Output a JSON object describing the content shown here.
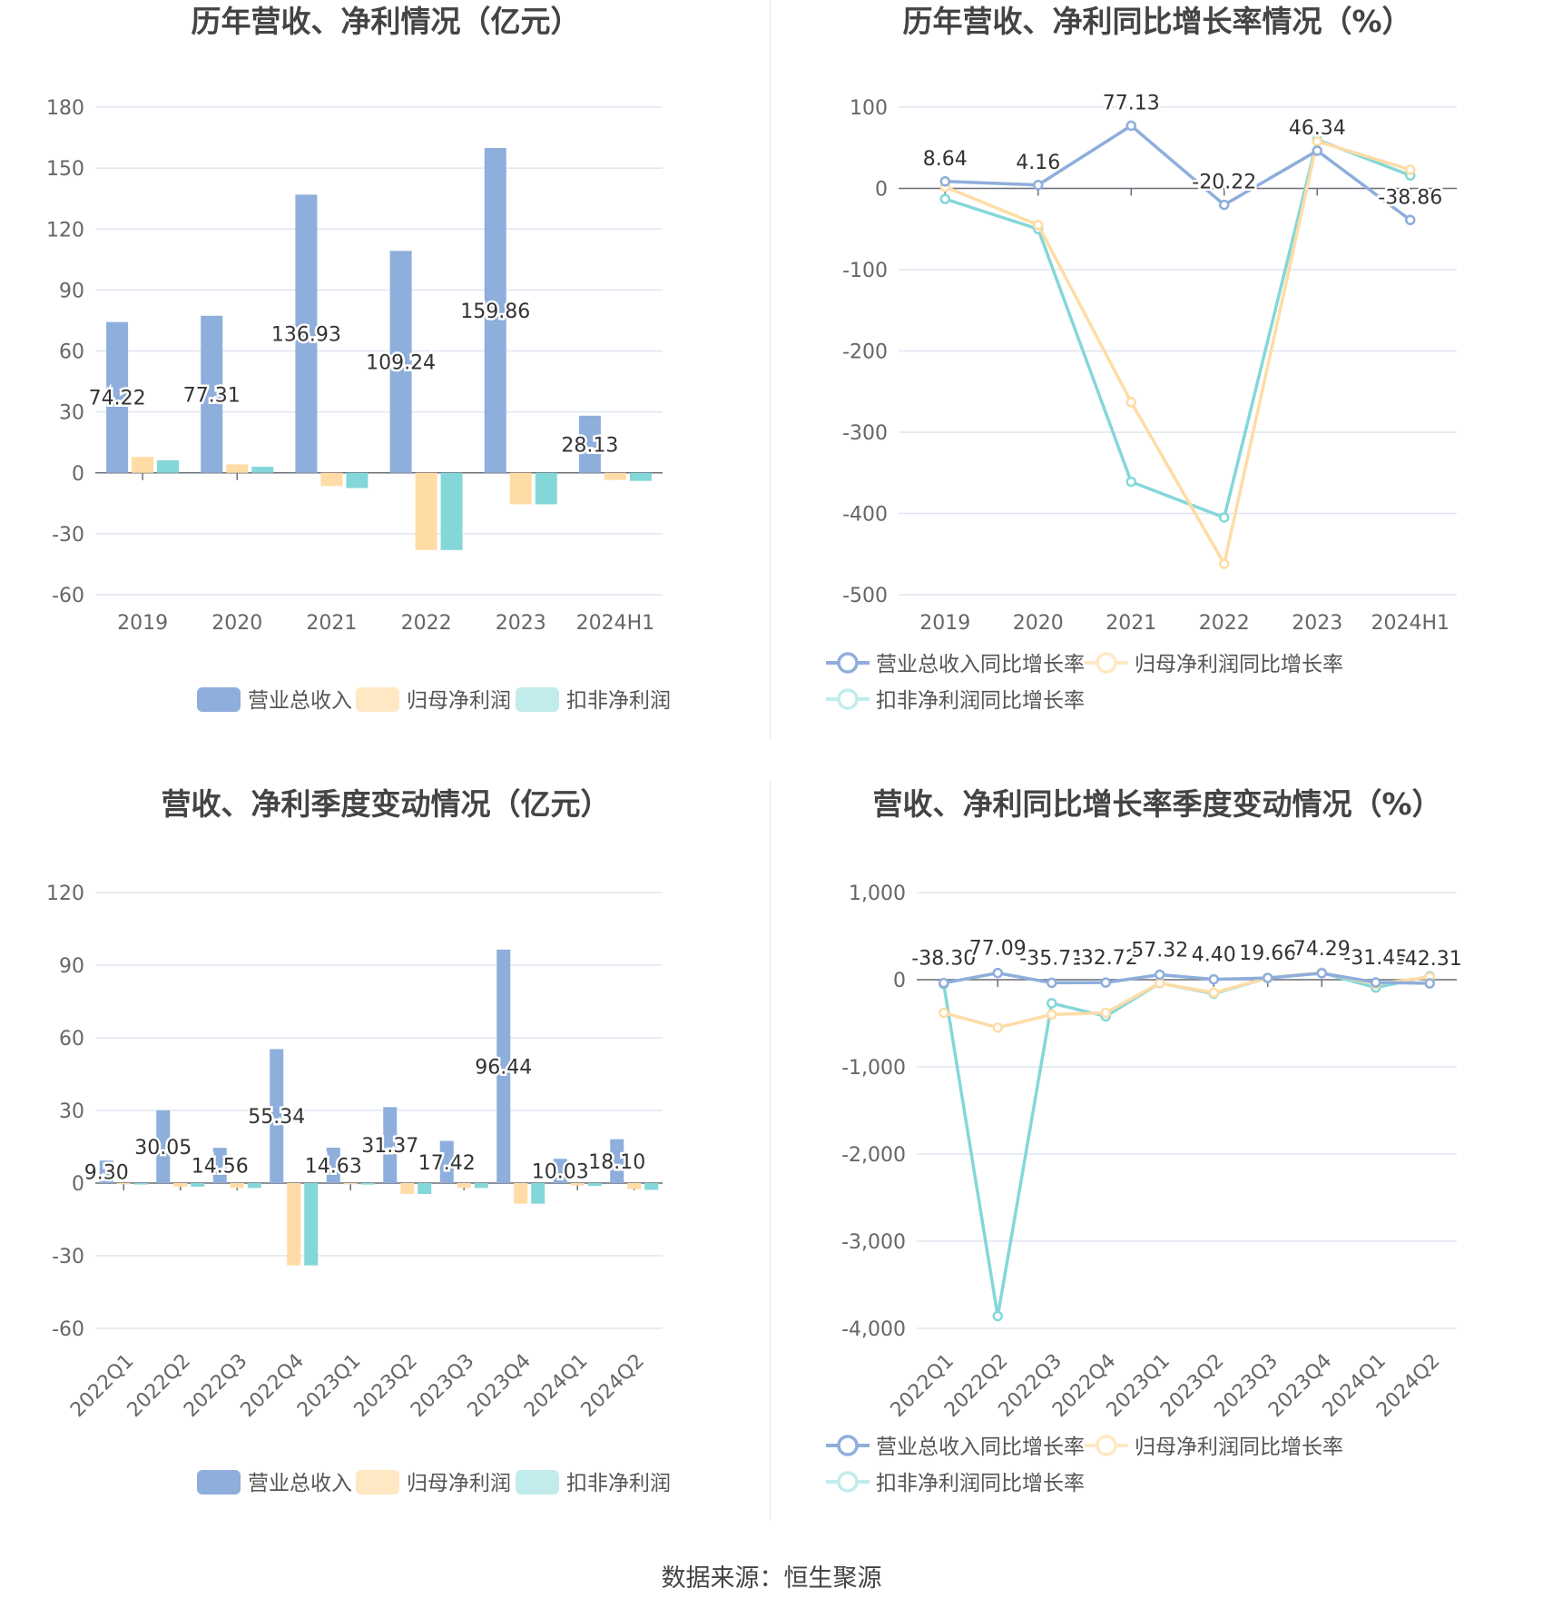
{
  "source_text": "数据来源：恒生聚源",
  "colors": {
    "revenue": "#8eaedb",
    "net_profit": "#ffdca6",
    "deducted_profit": "#84d7d9",
    "legend_net_profit": "#ffe8c3",
    "legend_deducted": "#c2eceb",
    "grid": "#e0e6f1",
    "axis_text": "#666666",
    "title": "#444444"
  },
  "chart_data": [
    {
      "id": "annual-values",
      "type": "bar",
      "title": "历年营收、净利情况（亿元）",
      "categories": [
        "2019",
        "2020",
        "2021",
        "2022",
        "2023",
        "2024H1"
      ],
      "ylim": [
        -60,
        180
      ],
      "yticks": [
        180,
        150,
        120,
        90,
        60,
        30,
        0,
        -30,
        -60
      ],
      "grid": true,
      "legend_position": "bottom",
      "series": [
        {
          "name": "营业总收入",
          "color_key": "revenue",
          "values": [
            74.22,
            77.31,
            136.93,
            109.24,
            159.86,
            28.13
          ],
          "labels": [
            "74.22",
            "77.31",
            "136.93",
            "109.24",
            "159.86",
            "28.13"
          ]
        },
        {
          "name": "归母净利润",
          "color_key": "net_profit",
          "values": [
            7.8,
            4.2,
            -6.5,
            -38,
            -15.5,
            -3.5
          ]
        },
        {
          "name": "扣非净利润",
          "color_key": "deducted_profit",
          "values": [
            6.2,
            3.0,
            -7.5,
            -38,
            -15.5,
            -4.0
          ]
        }
      ]
    },
    {
      "id": "annual-growth",
      "type": "line",
      "title": "历年营收、净利同比增长率情况（%）",
      "categories": [
        "2019",
        "2020",
        "2021",
        "2022",
        "2023",
        "2024H1"
      ],
      "ylim": [
        -500,
        100
      ],
      "yticks": [
        100,
        0,
        -100,
        -200,
        -300,
        -400,
        -500
      ],
      "grid": true,
      "legend_position": "bottom",
      "series": [
        {
          "name": "营业总收入同比增长率",
          "color_key": "revenue",
          "values": [
            8.64,
            4.16,
            77.13,
            -20.22,
            46.34,
            -38.86
          ],
          "labels": [
            "8.64",
            "4.16",
            "77.13",
            "-20.22",
            "46.34",
            "-38.86"
          ]
        },
        {
          "name": "归母净利润同比增长率",
          "color_key": "net_profit",
          "values": [
            2,
            -45,
            -263,
            -462,
            58,
            23
          ]
        },
        {
          "name": "扣非净利润同比增长率",
          "color_key": "deducted_profit",
          "values": [
            -13,
            -50,
            -361,
            -405,
            60,
            16
          ]
        }
      ]
    },
    {
      "id": "quarter-values",
      "type": "bar",
      "title": "营收、净利季度变动情况（亿元）",
      "categories": [
        "2022Q1",
        "2022Q2",
        "2022Q3",
        "2022Q4",
        "2023Q1",
        "2023Q2",
        "2023Q3",
        "2023Q4",
        "2024Q1",
        "2024Q2"
      ],
      "ylim": [
        -60,
        120
      ],
      "yticks": [
        120,
        90,
        60,
        30,
        0,
        -30,
        -60
      ],
      "grid": true,
      "legend_position": "bottom",
      "series": [
        {
          "name": "营业总收入",
          "color_key": "revenue",
          "values": [
            9.3,
            30.05,
            14.56,
            55.34,
            14.63,
            31.37,
            17.42,
            96.44,
            10.03,
            18.1
          ],
          "labels": [
            "9.30",
            "30.05",
            "14.56",
            "55.34",
            "14.63",
            "31.37",
            "17.42",
            "96.44",
            "10.03",
            "18.10"
          ]
        },
        {
          "name": "归母净利润",
          "color_key": "net_profit",
          "values": [
            -0.5,
            -1.5,
            -2.0,
            -34,
            -0.5,
            -4.5,
            -2.0,
            -8.5,
            -1.0,
            -2.5
          ]
        },
        {
          "name": "扣非净利润",
          "color_key": "deducted_profit",
          "values": [
            -0.6,
            -1.5,
            -2.0,
            -34,
            -0.6,
            -4.5,
            -2.0,
            -8.5,
            -1.2,
            -2.8
          ]
        }
      ]
    },
    {
      "id": "quarter-growth",
      "type": "line",
      "title": "营收、净利同比增长率季度变动情况（%）",
      "categories": [
        "2022Q1",
        "2022Q2",
        "2022Q3",
        "2022Q4",
        "2023Q1",
        "2023Q2",
        "2023Q3",
        "2023Q4",
        "2024Q1",
        "2024Q2"
      ],
      "ylim": [
        -4000,
        1000
      ],
      "yticks": [
        1000,
        0,
        -1000,
        -2000,
        -3000,
        -4000
      ],
      "ytick_labels": [
        "1,000",
        "0",
        "-1,000",
        "-2,000",
        "-3,000",
        "-4,000"
      ],
      "grid": true,
      "legend_position": "bottom",
      "series": [
        {
          "name": "营业总收入同比增长率",
          "color_key": "revenue",
          "values": [
            -38.3,
            77.09,
            -35.71,
            -32.72,
            57.32,
            4.4,
            19.66,
            74.29,
            -31.45,
            -42.31
          ],
          "labels": [
            "-38.30",
            "77.09",
            "-35.71",
            "-32.72",
            "57.32",
            "4.40",
            "19.66",
            "74.29",
            "-31.45",
            "-42.31"
          ]
        },
        {
          "name": "归母净利润同比增长率",
          "color_key": "net_profit",
          "values": [
            -380,
            -550,
            -400,
            -380,
            -40,
            -150,
            20,
            80,
            -50,
            30
          ]
        },
        {
          "name": "扣非净利润同比增长率",
          "color_key": "deducted_profit",
          "values": [
            -50,
            -3860,
            -270,
            -420,
            -40,
            -160,
            20,
            80,
            -90,
            40
          ]
        }
      ]
    }
  ]
}
